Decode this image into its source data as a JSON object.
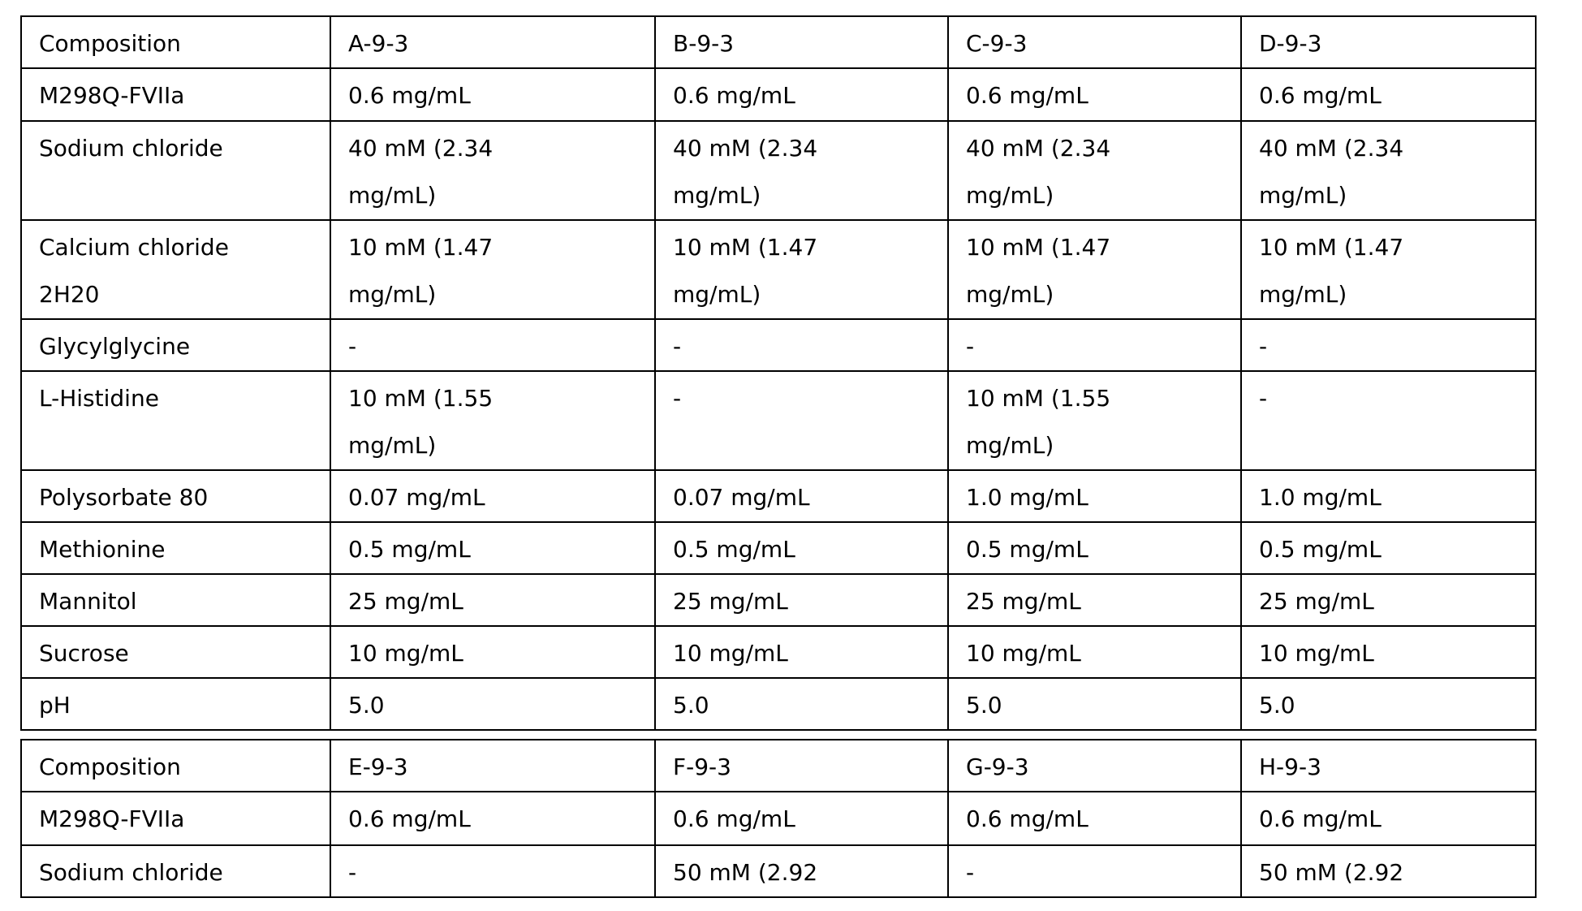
{
  "tables": [
    {
      "header": [
        "Composition",
        "A-9-3",
        "B-9-3",
        "C-9-3",
        "D-9-3"
      ],
      "rows": [
        [
          "M298Q-FVIIa",
          "0.6 mg/mL",
          "0.6 mg/mL",
          "0.6 mg/mL",
          "0.6 mg/mL"
        ],
        [
          "Sodium chloride",
          "40 mM (2.34\nmg/mL)",
          "40 mM (2.34\nmg/mL)",
          "40 mM (2.34\nmg/mL)",
          "40 mM (2.34\nmg/mL)"
        ],
        [
          "Calcium chloride\n2H20",
          "10 mM (1.47\nmg/mL)",
          "10 mM (1.47\nmg/mL)",
          "10 mM (1.47\nmg/mL)",
          "10 mM (1.47\nmg/mL)"
        ],
        [
          "Glycylglycine",
          "-",
          "-",
          "-",
          "-"
        ],
        [
          "L-Histidine",
          "10 mM (1.55\nmg/mL)",
          "-",
          "10 mM (1.55\nmg/mL)",
          "-"
        ],
        [
          "Polysorbate 80",
          "0.07 mg/mL",
          "0.07 mg/mL",
          "1.0 mg/mL",
          "1.0 mg/mL"
        ],
        [
          "Methionine",
          "0.5 mg/mL",
          "0.5 mg/mL",
          "0.5 mg/mL",
          "0.5 mg/mL"
        ],
        [
          "Mannitol",
          "25 mg/mL",
          "25 mg/mL",
          "25 mg/mL",
          "25 mg/mL"
        ],
        [
          "Sucrose",
          "10 mg/mL",
          "10 mg/mL",
          "10 mg/mL",
          "10 mg/mL"
        ],
        [
          "pH",
          "5.0",
          "5.0",
          "5.0",
          "5.0"
        ]
      ]
    },
    {
      "header": [
        "Composition",
        "E-9-3",
        "F-9-3",
        "G-9-3",
        "H-9-3"
      ],
      "rows": [
        [
          "M298Q-FVIIa",
          "0.6 mg/mL",
          "0.6 mg/mL",
          "0.6 mg/mL",
          "0.6 mg/mL"
        ],
        [
          "Sodium chloride",
          "-",
          "50 mM (2.92",
          "-",
          "50 mM (2.92"
        ]
      ]
    }
  ]
}
